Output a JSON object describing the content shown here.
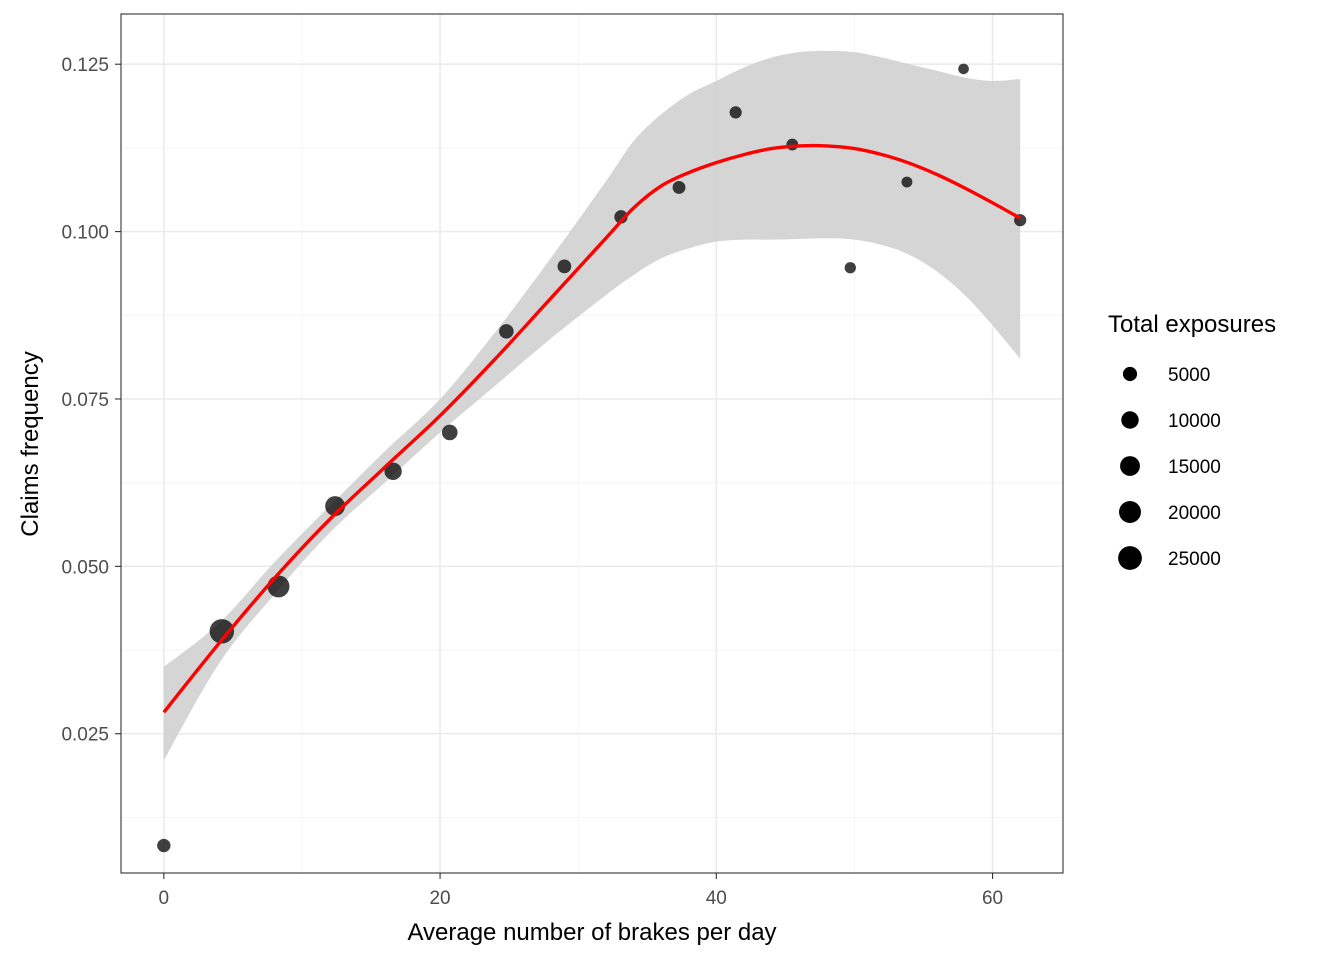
{
  "chart_data": {
    "type": "scatter",
    "title": "",
    "xlabel": "Average number of brakes per day",
    "ylabel": "Claims frequency",
    "xlim": [
      -3.1,
      65.1
    ],
    "ylim": [
      0.0042,
      0.1325
    ],
    "x_ticks": [
      0,
      20,
      40,
      60
    ],
    "x_tick_labels": [
      "0",
      "20",
      "40",
      "60"
    ],
    "x_minor_ticks": [
      10,
      30,
      50
    ],
    "y_ticks": [
      0.025,
      0.05,
      0.075,
      0.1,
      0.125
    ],
    "y_tick_labels": [
      "0.025",
      "0.050",
      "0.075",
      "0.100",
      "0.125"
    ],
    "y_minor_ticks": [
      0.0125,
      0.0375,
      0.0625,
      0.0875,
      0.1125
    ],
    "grid": true,
    "points": [
      {
        "x": 0,
        "y": 0.0083,
        "exposure": 4000
      },
      {
        "x": 4.2,
        "y": 0.0403,
        "exposure": 27000
      },
      {
        "x": 8.3,
        "y": 0.047,
        "exposure": 20000
      },
      {
        "x": 12.4,
        "y": 0.059,
        "exposure": 15000
      },
      {
        "x": 16.6,
        "y": 0.0642,
        "exposure": 10000
      },
      {
        "x": 20.7,
        "y": 0.07,
        "exposure": 7000
      },
      {
        "x": 24.8,
        "y": 0.0851,
        "exposure": 5500
      },
      {
        "x": 29.0,
        "y": 0.0948,
        "exposure": 4500
      },
      {
        "x": 33.1,
        "y": 0.1022,
        "exposure": 4000
      },
      {
        "x": 37.3,
        "y": 0.1066,
        "exposure": 3500
      },
      {
        "x": 41.4,
        "y": 0.1178,
        "exposure": 2800
      },
      {
        "x": 45.5,
        "y": 0.113,
        "exposure": 2400
      },
      {
        "x": 49.7,
        "y": 0.0946,
        "exposure": 2000
      },
      {
        "x": 53.8,
        "y": 0.1074,
        "exposure": 1700
      },
      {
        "x": 57.9,
        "y": 0.1243,
        "exposure": 1500
      },
      {
        "x": 62.0,
        "y": 0.1017,
        "exposure": 2800
      }
    ],
    "smooth": {
      "color": "#ff0000",
      "ribbon_color": "#d3d3d3",
      "x": [
        0,
        4,
        8,
        12,
        16,
        20,
        24,
        28,
        32,
        34,
        36,
        38,
        40,
        42,
        44,
        46,
        48,
        50,
        52,
        54,
        56,
        58,
        60,
        62
      ],
      "y": [
        0.0282,
        0.0385,
        0.0482,
        0.057,
        0.0648,
        0.0725,
        0.081,
        0.09,
        0.099,
        0.1035,
        0.1068,
        0.1088,
        0.1103,
        0.1115,
        0.1124,
        0.1128,
        0.1128,
        0.1124,
        0.1115,
        0.1102,
        0.1085,
        0.1065,
        0.1043,
        0.102
      ],
      "lower": [
        0.021,
        0.0355,
        0.0458,
        0.055,
        0.0625,
        0.07,
        0.077,
        0.084,
        0.0905,
        0.0935,
        0.096,
        0.0975,
        0.0985,
        0.0988,
        0.0988,
        0.0989,
        0.099,
        0.0988,
        0.098,
        0.0965,
        0.094,
        0.0905,
        0.086,
        0.081
      ],
      "upper": [
        0.035,
        0.0415,
        0.0506,
        0.059,
        0.0672,
        0.075,
        0.085,
        0.096,
        0.1075,
        0.1135,
        0.1175,
        0.1205,
        0.1225,
        0.1245,
        0.126,
        0.1268,
        0.127,
        0.1268,
        0.126,
        0.125,
        0.124,
        0.123,
        0.1225,
        0.1228
      ]
    },
    "legend": {
      "title": "Total exposures",
      "position": "right",
      "entries": [
        {
          "label": "5000",
          "value": 5000
        },
        {
          "label": "10000",
          "value": 10000
        },
        {
          "label": "15000",
          "value": 15000
        },
        {
          "label": "20000",
          "value": 20000
        },
        {
          "label": "25000",
          "value": 25000
        }
      ]
    },
    "colors": {
      "point": "#000000",
      "point_fill_opacity": 0.75,
      "grid_major": "#ebebeb",
      "grid_minor": "#f5f5f5",
      "panel_border": "#333333",
      "tick_label": "#4d4d4d"
    }
  }
}
